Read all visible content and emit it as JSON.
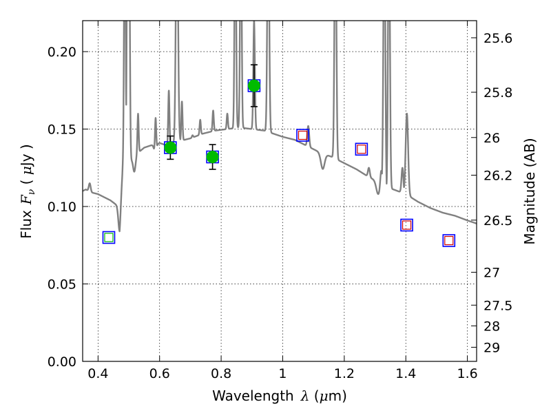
{
  "chart_data": {
    "type": "line",
    "xlabel_text": "Wavelength",
    "xlabel_math": "λ",
    "xlabel_unit_open": " (",
    "xlabel_unit_mu": "μ",
    "xlabel_unit_rest": "m)",
    "ylabel_text": "Flux",
    "ylabel_math": "F",
    "ylabel_sub": "ν",
    "ylabel_unit_open": "  ( ",
    "ylabel_unit_mu": "μ",
    "ylabel_unit_rest": "Jy )",
    "ylabel_right": "Magnitude (AB)",
    "xlim": [
      0.35,
      1.63
    ],
    "ylim": [
      0.0,
      0.22
    ],
    "grid": true,
    "x_ticks": [
      0.4,
      0.6,
      0.8,
      1.0,
      1.2,
      1.4,
      1.6
    ],
    "x_tick_labels": [
      "0.4",
      "0.6",
      "0.8",
      "1",
      "1.2",
      "1.4",
      "1.6"
    ],
    "y_ticks": [
      0.0,
      0.05,
      0.1,
      0.15,
      0.2
    ],
    "y_tick_labels": [
      "0.00",
      "0.05",
      "0.10",
      "0.15",
      "0.20"
    ],
    "mag_ticks": [
      25.6,
      25.8,
      26,
      26.2,
      26.5,
      27,
      27.5,
      28,
      29
    ],
    "mag_tick_labels": [
      "25.6",
      "25.8",
      "26",
      "26.2",
      "26.5",
      "27",
      "27.5",
      "28",
      "29"
    ],
    "model_color": "#808080",
    "detected_color": "#00bb00",
    "model_box_color": "#0000ff",
    "upper_color": "#d00000",
    "continuum": [
      [
        0.35,
        0.11
      ],
      [
        0.36,
        0.111
      ],
      [
        0.38,
        0.109
      ],
      [
        0.4,
        0.108
      ],
      [
        0.42,
        0.106
      ],
      [
        0.44,
        0.104
      ],
      [
        0.46,
        0.101
      ],
      [
        0.47,
        0.099
      ],
      [
        0.48,
        0.124
      ],
      [
        0.5,
        0.128
      ],
      [
        0.52,
        0.133
      ],
      [
        0.55,
        0.138
      ],
      [
        0.58,
        0.14
      ],
      [
        0.6,
        0.141
      ],
      [
        0.63,
        0.139
      ],
      [
        0.66,
        0.142
      ],
      [
        0.7,
        0.144
      ],
      [
        0.74,
        0.147
      ],
      [
        0.78,
        0.149
      ],
      [
        0.82,
        0.15
      ],
      [
        0.86,
        0.151
      ],
      [
        0.9,
        0.15
      ],
      [
        0.94,
        0.149
      ],
      [
        0.97,
        0.147
      ],
      [
        1.0,
        0.145
      ],
      [
        1.04,
        0.143
      ],
      [
        1.08,
        0.139
      ],
      [
        1.12,
        0.135
      ],
      [
        1.16,
        0.132
      ],
      [
        1.2,
        0.128
      ],
      [
        1.24,
        0.124
      ],
      [
        1.28,
        0.119
      ],
      [
        1.32,
        0.115
      ],
      [
        1.36,
        0.111
      ],
      [
        1.4,
        0.108
      ],
      [
        1.44,
        0.103
      ],
      [
        1.48,
        0.099
      ],
      [
        1.52,
        0.096
      ],
      [
        1.56,
        0.094
      ],
      [
        1.6,
        0.091
      ],
      [
        1.63,
        0.089
      ]
    ],
    "emission_lines": [
      {
        "x": 0.373,
        "peak": 0.115,
        "width": 0.003
      },
      {
        "x": 0.476,
        "peak": 0.093,
        "width": 0.002
      },
      {
        "x": 0.487,
        "peak": 0.3,
        "width": 0.0025
      },
      {
        "x": 0.4959,
        "peak": 0.3,
        "width": 0.0025
      },
      {
        "x": 0.5007,
        "peak": 0.3,
        "width": 0.0025
      },
      {
        "x": 0.53,
        "peak": 0.16,
        "width": 0.002
      },
      {
        "x": 0.587,
        "peak": 0.163,
        "width": 0.002
      },
      {
        "x": 0.63,
        "peak": 0.175,
        "width": 0.002
      },
      {
        "x": 0.6563,
        "peak": 0.3,
        "width": 0.0035
      },
      {
        "x": 0.6725,
        "peak": 0.168,
        "width": 0.002
      },
      {
        "x": 0.707,
        "peak": 0.146,
        "width": 0.002
      },
      {
        "x": 0.732,
        "peak": 0.156,
        "width": 0.002
      },
      {
        "x": 0.774,
        "peak": 0.162,
        "width": 0.002
      },
      {
        "x": 0.82,
        "peak": 0.16,
        "width": 0.002
      },
      {
        "x": 0.846,
        "peak": 0.3,
        "width": 0.0025
      },
      {
        "x": 0.864,
        "peak": 0.3,
        "width": 0.0025
      },
      {
        "x": 0.907,
        "peak": 0.22,
        "width": 0.0025
      },
      {
        "x": 0.953,
        "peak": 0.3,
        "width": 0.003
      },
      {
        "x": 1.083,
        "peak": 0.152,
        "width": 0.003
      },
      {
        "x": 1.1712,
        "peak": 0.3,
        "width": 0.003
      },
      {
        "x": 1.28,
        "peak": 0.125,
        "width": 0.003
      },
      {
        "x": 1.32,
        "peak": 0.125,
        "width": 0.003
      },
      {
        "x": 1.3302,
        "peak": 0.3,
        "width": 0.003
      },
      {
        "x": 1.3452,
        "peak": 0.3,
        "width": 0.003
      },
      {
        "x": 1.389,
        "peak": 0.125,
        "width": 0.003
      },
      {
        "x": 1.4035,
        "peak": 0.16,
        "width": 0.004
      }
    ],
    "absorption_dips": [
      {
        "x": 0.47,
        "depth": 0.015,
        "width": 0.004
      },
      {
        "x": 0.518,
        "depth": 0.01,
        "width": 0.004
      },
      {
        "x": 0.586,
        "depth": 0.006,
        "width": 0.004
      },
      {
        "x": 1.13,
        "depth": 0.01,
        "width": 0.006
      },
      {
        "x": 1.31,
        "depth": 0.008,
        "width": 0.006
      },
      {
        "x": 1.34,
        "depth": 0.008,
        "width": 0.006
      }
    ],
    "model_boxes": [
      {
        "x": 0.435,
        "y": 0.08
      },
      {
        "x": 0.635,
        "y": 0.138
      },
      {
        "x": 0.772,
        "y": 0.132
      },
      {
        "x": 0.907,
        "y": 0.178
      },
      {
        "x": 1.065,
        "y": 0.146
      },
      {
        "x": 1.256,
        "y": 0.137
      },
      {
        "x": 1.403,
        "y": 0.088
      },
      {
        "x": 1.54,
        "y": 0.078
      }
    ],
    "detections": [
      {
        "x": 0.635,
        "y": 0.138,
        "err": 0.0075
      },
      {
        "x": 0.772,
        "y": 0.132,
        "err": 0.008
      },
      {
        "x": 0.907,
        "y": 0.178,
        "err": 0.0135
      }
    ],
    "nondetections_green": [
      {
        "x": 0.435,
        "y": 0.08
      }
    ],
    "nondetections_red": [
      {
        "x": 1.065,
        "y": 0.146
      },
      {
        "x": 1.256,
        "y": 0.137
      },
      {
        "x": 1.403,
        "y": 0.088
      },
      {
        "x": 1.54,
        "y": 0.078
      }
    ]
  }
}
